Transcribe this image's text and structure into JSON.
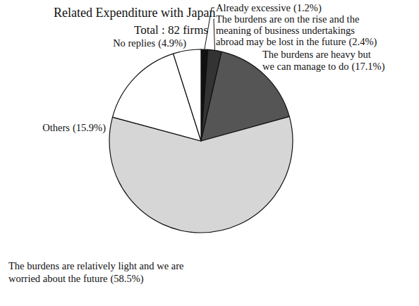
{
  "chart_data": {
    "type": "pie",
    "title": "Related Expenditure with Japan",
    "subtitle": "Total : 82 firms",
    "categories": [
      "Already excessive",
      "The burdens are on the rise and the meaning of business undertakings abroad may be lost in the future",
      "The burdens are heavy but we can manage to do",
      "The burdens are relatively light and we are worried about the future",
      "Others",
      "No replies"
    ],
    "values": [
      1.2,
      2.4,
      17.1,
      58.5,
      15.9,
      4.9
    ],
    "value_labels": [
      "(1.2%)",
      "(2.4%)",
      "(17.1%)",
      "(58.5%)",
      "(15.9%)",
      "(4.9%)"
    ],
    "colors": [
      "#111111",
      "#333333",
      "#555555",
      "#d6d6d6",
      "#ffffff",
      "#ffffff"
    ],
    "data_labels": true
  }
}
